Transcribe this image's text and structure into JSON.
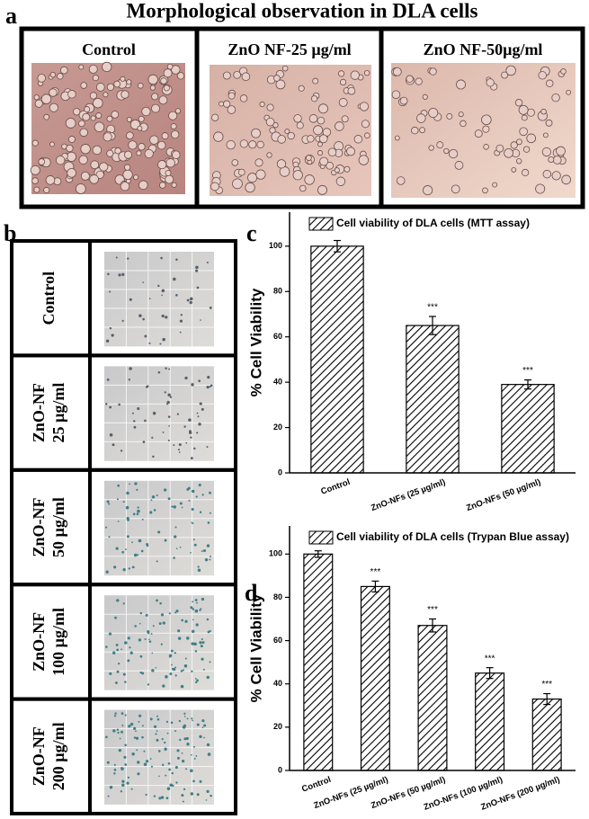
{
  "panel_a": {
    "label": "a",
    "title": "Morphological observation in DLA cells",
    "images": [
      "Control",
      "ZnO NF-25 µg/ml",
      "ZnO NF-50µg/ml"
    ]
  },
  "panel_b": {
    "label": "b",
    "rows": [
      [
        "Control"
      ],
      [
        "ZnO-NF",
        "25 µg/ml"
      ],
      [
        "ZnO-NF",
        "50 µg/ml"
      ],
      [
        "ZnO-NF",
        "100 µg/ml"
      ],
      [
        "ZnO-NF",
        "200 µg/ml"
      ]
    ]
  },
  "chart_data": [
    {
      "type": "bar",
      "panel_label": "c",
      "ylabel": "% Cell Viability",
      "categories": [
        "Control",
        "ZnO-NFs (25 µg/ml)",
        "ZnO-NFs (50 µg/ml)"
      ],
      "series": [
        {
          "name": "Cell viability of DLA cells (MTT assay)",
          "color": "#000000",
          "values": [
            100,
            65,
            39
          ],
          "errors": [
            2.5,
            4,
            2
          ]
        }
      ],
      "annotations": [
        null,
        "***",
        "***"
      ],
      "ylim": [
        0,
        115
      ],
      "yticks": [
        0,
        20,
        40,
        60,
        80,
        100
      ]
    },
    {
      "type": "bar",
      "panel_label": "d",
      "ylabel": "% Cell Viability",
      "categories": [
        "Control",
        "ZnO-NFs (25 µg/ml)",
        "ZnO-NFs (50 µg/ml)",
        "ZnO-NFs (100 µg/ml)",
        "ZnO-NFs (200 µg/ml)"
      ],
      "series": [
        {
          "name": "Cell viability of DLA cells (Trypan Blue assay)",
          "color": "#000000",
          "values": [
            100,
            85,
            67,
            45,
            33
          ],
          "errors": [
            1.5,
            2.5,
            3,
            2.5,
            2.5
          ]
        }
      ],
      "annotations": [
        null,
        "***",
        "***",
        "***",
        "***"
      ],
      "ylim": [
        0,
        113
      ],
      "yticks": [
        0,
        20,
        40,
        60,
        80,
        100
      ]
    }
  ]
}
